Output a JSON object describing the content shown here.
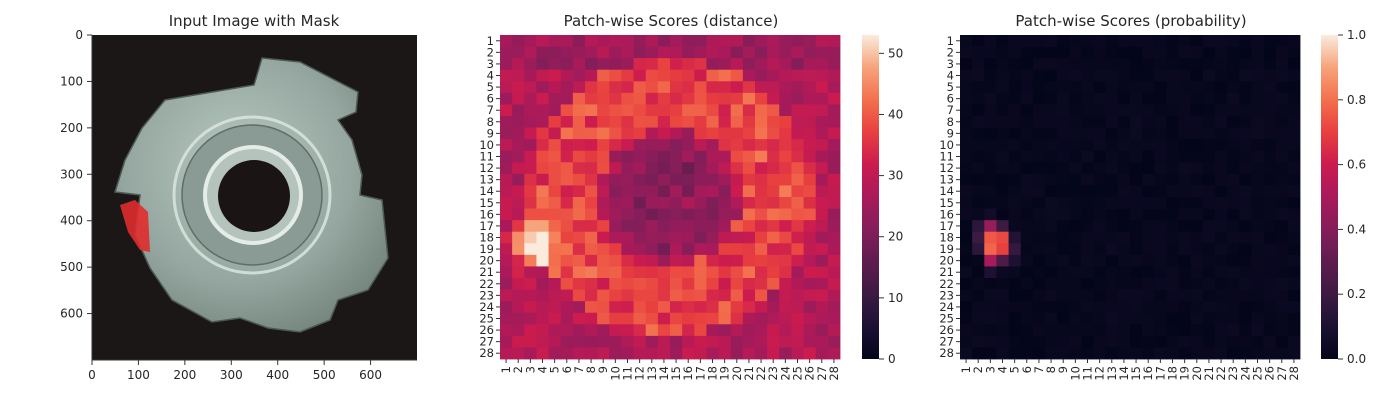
{
  "figure": {
    "panels": [
      {
        "id": "input-image",
        "title": "Input Image with Mask",
        "x_ticks": [
          "0",
          "100",
          "200",
          "300",
          "400",
          "500",
          "600"
        ],
        "y_ticks": [
          "0",
          "100",
          "200",
          "300",
          "400",
          "500",
          "600"
        ]
      },
      {
        "id": "distance-heatmap",
        "title": "Patch-wise Scores (distance)",
        "colorbar_ticks": [
          "0",
          "10",
          "20",
          "30",
          "40",
          "50"
        ]
      },
      {
        "id": "probability-heatmap",
        "title": "Patch-wise Scores (probability)",
        "colorbar_ticks": [
          "0.0",
          "0.2",
          "0.4",
          "0.6",
          "0.8",
          "1.0"
        ]
      }
    ]
  },
  "chart_data": [
    {
      "type": "image",
      "title": "Input Image with Mask",
      "xlim": [
        0,
        700
      ],
      "ylim": [
        700,
        0
      ],
      "x_ticks": [
        0,
        100,
        200,
        300,
        400,
        500,
        600
      ],
      "y_ticks": [
        0,
        100,
        200,
        300,
        400,
        500,
        600
      ],
      "colors": {
        "background": "#1c1717",
        "metal": "#9aaca6",
        "mask": "#e02c2c"
      }
    },
    {
      "type": "heatmap",
      "title": "Patch-wise Scores (distance)",
      "rows": 28,
      "cols": 28,
      "row_labels": [
        "1",
        "2",
        "3",
        "4",
        "5",
        "6",
        "7",
        "8",
        "9",
        "10",
        "11",
        "12",
        "13",
        "14",
        "15",
        "16",
        "17",
        "18",
        "19",
        "20",
        "21",
        "22",
        "23",
        "24",
        "25",
        "26",
        "27",
        "28"
      ],
      "col_labels": [
        "1",
        "2",
        "3",
        "4",
        "5",
        "6",
        "7",
        "8",
        "9",
        "10",
        "11",
        "12",
        "13",
        "14",
        "15",
        "16",
        "17",
        "18",
        "19",
        "20",
        "21",
        "22",
        "23",
        "24",
        "25",
        "26",
        "27",
        "28"
      ],
      "colorbar": {
        "min": 0,
        "max": 53,
        "ticks": [
          0,
          10,
          20,
          30,
          40,
          50
        ]
      },
      "colormap": "rocket",
      "values_note": "background ~22-34, ring ~30-38, hotspot peak ~53 at rows 17-20, cols 2-4"
    },
    {
      "type": "heatmap",
      "title": "Patch-wise Scores (probability)",
      "rows": 28,
      "cols": 28,
      "row_labels": [
        "1",
        "2",
        "3",
        "4",
        "5",
        "6",
        "7",
        "8",
        "9",
        "10",
        "11",
        "12",
        "13",
        "14",
        "15",
        "16",
        "17",
        "18",
        "19",
        "20",
        "21",
        "22",
        "23",
        "24",
        "25",
        "26",
        "27",
        "28"
      ],
      "col_labels": [
        "1",
        "2",
        "3",
        "4",
        "5",
        "6",
        "7",
        "8",
        "9",
        "10",
        "11",
        "12",
        "13",
        "14",
        "15",
        "16",
        "17",
        "18",
        "19",
        "20",
        "21",
        "22",
        "23",
        "24",
        "25",
        "26",
        "27",
        "28"
      ],
      "colorbar": {
        "min": 0.0,
        "max": 1.0,
        "ticks": [
          0.0,
          0.2,
          0.4,
          0.6,
          0.8,
          1.0
        ]
      },
      "colormap": "rocket",
      "hotspot_values": [
        {
          "row": 17,
          "col": 2,
          "value": 0.15
        },
        {
          "row": 17,
          "col": 3,
          "value": 0.45
        },
        {
          "row": 17,
          "col": 4,
          "value": 0.2
        },
        {
          "row": 18,
          "col": 2,
          "value": 0.2
        },
        {
          "row": 18,
          "col": 3,
          "value": 0.75
        },
        {
          "row": 18,
          "col": 4,
          "value": 0.72
        },
        {
          "row": 18,
          "col": 5,
          "value": 0.12
        },
        {
          "row": 19,
          "col": 2,
          "value": 0.15
        },
        {
          "row": 19,
          "col": 3,
          "value": 0.78
        },
        {
          "row": 19,
          "col": 4,
          "value": 0.7
        },
        {
          "row": 19,
          "col": 5,
          "value": 0.18
        },
        {
          "row": 20,
          "col": 3,
          "value": 0.5
        },
        {
          "row": 20,
          "col": 4,
          "value": 0.25
        },
        {
          "row": 20,
          "col": 5,
          "value": 0.1
        },
        {
          "row": 21,
          "col": 3,
          "value": 0.1
        },
        {
          "row": 16,
          "col": 3,
          "value": 0.06
        }
      ]
    }
  ]
}
